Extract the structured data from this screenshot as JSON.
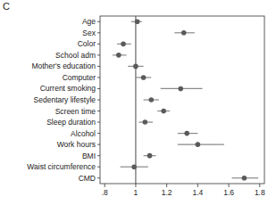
{
  "chart_data": {
    "type": "dot",
    "title": "C",
    "orientation": "horizontal",
    "categories": [
      "Age",
      "Sex",
      "Color",
      "School adm",
      "Mother's education",
      "Computer",
      "Current smoking",
      "Sedentary lifestyle",
      "Screen time",
      "Sleep duration",
      "Alcohol",
      "Work hours",
      "BMI",
      "Waist circumference",
      "CMD"
    ],
    "values": [
      1.01,
      1.31,
      0.92,
      0.89,
      1.0,
      1.05,
      1.29,
      1.1,
      1.18,
      1.06,
      1.33,
      1.4,
      1.09,
      0.99,
      1.7
    ],
    "lower": [
      0.97,
      1.25,
      0.88,
      0.85,
      0.95,
      1.0,
      1.16,
      1.05,
      1.14,
      1.02,
      1.27,
      1.27,
      1.05,
      0.9,
      1.62
    ],
    "upper": [
      1.04,
      1.38,
      0.97,
      0.94,
      1.05,
      1.1,
      1.43,
      1.15,
      1.22,
      1.11,
      1.4,
      1.57,
      1.13,
      1.08,
      1.79
    ],
    "ref_line": 1,
    "color": "#5a5a5a",
    "xlim": [
      0.77,
      1.83
    ],
    "xticks": [
      {
        "value": 0.8,
        "label": ".8"
      },
      1,
      1.2,
      1.4,
      1.6,
      1.8
    ],
    "grid": false
  }
}
